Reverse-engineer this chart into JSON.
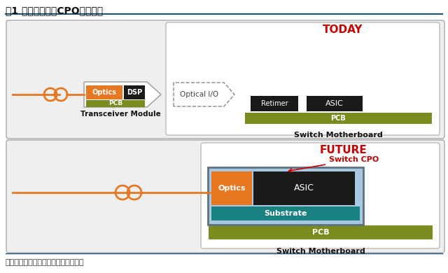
{
  "title": "图1 光电共封装（CPO）原理图",
  "footer": "资料来源：博通官网、中航证券研究所",
  "bg_color": "#ffffff",
  "panel_bg": "#efefef",
  "today_label": "TODAY",
  "future_label": "FUTURE",
  "orange_color": "#e87722",
  "dark_color": "#1a1a1a",
  "green_color": "#7a8c1e",
  "teal_color": "#1a8080",
  "blue_light": "#a8c8e0",
  "gray_border": "#aaaaaa",
  "red_color": "#cc0000",
  "title_line_color": "#1a5276",
  "footer_line_color": "#1a5276"
}
